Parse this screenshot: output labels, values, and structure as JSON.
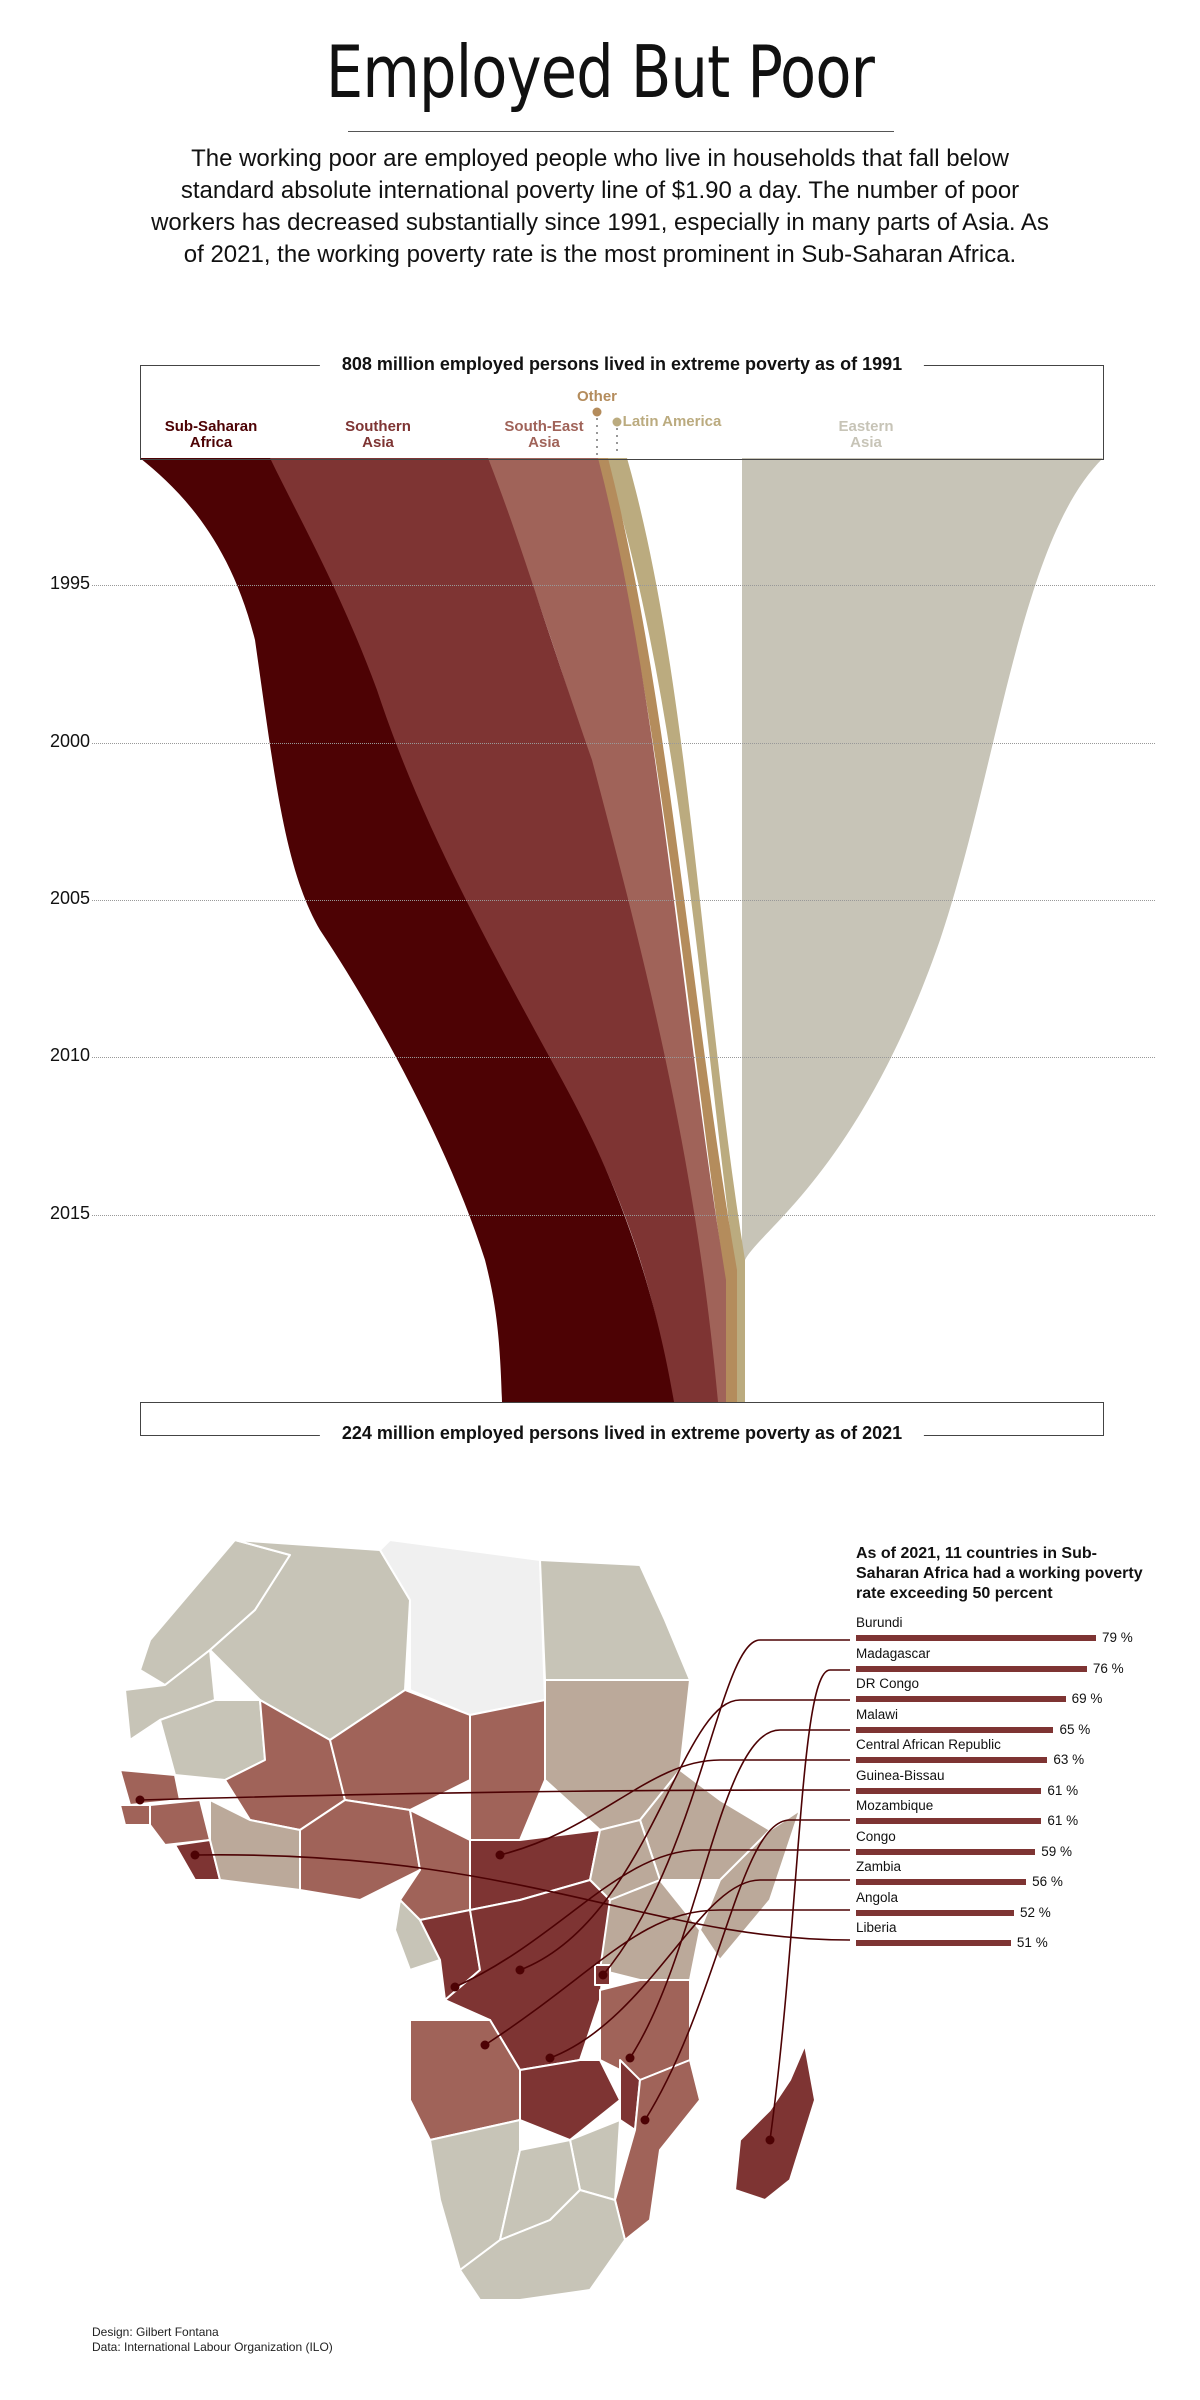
{
  "header": {
    "title": "Employed But Poor",
    "subtitle": "The working poor are employed people who live in households that fall below standard absolute international poverty line of $1.90 a day. The number of poor workers has decreased substantially since 1991, especially in many parts of Asia. As of 2021, the working poverty rate is the most prominent in Sub-Saharan Africa."
  },
  "stream": {
    "top_caption": "808 million employed persons lived in extreme poverty as of 1991",
    "bottom_caption": "224 million employed persons lived in extreme poverty as of 2021",
    "labels": {
      "ssa_line1": "Sub-Saharan",
      "ssa_line2": "Africa",
      "sa_line1": "Southern",
      "sa_line2": "Asia",
      "sea_line1": "South-East",
      "sea_line2": "Asia",
      "other": "Other",
      "latam": "Latin America",
      "ea_line1": "Eastern",
      "ea_line2": "Asia"
    },
    "years": [
      "1995",
      "2000",
      "2005",
      "2010",
      "2015"
    ]
  },
  "chart_data": [
    {
      "type": "area",
      "title": "",
      "x": [
        1991,
        2021
      ],
      "ylabel": "",
      "series": [
        {
          "name": "Sub-Saharan Africa",
          "color": "#4d0204"
        },
        {
          "name": "Southern Asia",
          "color": "#7e3433"
        },
        {
          "name": "South-East Asia",
          "color": "#a06359"
        },
        {
          "name": "Other",
          "color": "#b48c5c"
        },
        {
          "name": "Latin America",
          "color": "#bbab7f"
        },
        {
          "name": "Eastern Asia",
          "color": "#c7c4b7"
        }
      ],
      "totals_text": {
        "1991": "808 million",
        "2021": "224 million"
      }
    },
    {
      "type": "bar",
      "title": "As of 2021, 11 countries in Sub-Saharan Africa had a working poverty rate exceeding 50 percent",
      "categories": [
        "Burundi",
        "Madagascar",
        "DR Congo",
        "Malawi",
        "Central African Republic",
        "Guinea-Bissau",
        "Mozambique",
        "Congo",
        "Zambia",
        "Angola",
        "Liberia"
      ],
      "values": [
        79,
        76,
        69,
        65,
        63,
        61,
        61,
        59,
        56,
        52,
        51
      ],
      "labels": [
        "79 %",
        "76 %",
        "69 %",
        "65 %",
        "63 %",
        "61 %",
        "61 %",
        "59 %",
        "56 %",
        "52 %",
        "51 %"
      ],
      "unit": "%"
    }
  ],
  "credits": {
    "design": "Design: Gilbert Fontana",
    "data": "Data: International Labour Organization (ILO)"
  }
}
